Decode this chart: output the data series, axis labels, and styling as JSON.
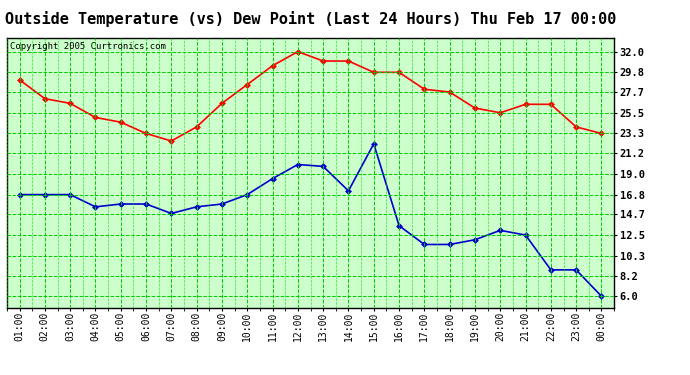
{
  "title": "Outside Temperature (vs) Dew Point (Last 24 Hours) Thu Feb 17 00:00",
  "copyright": "Copyright 2005 Curtronics.com",
  "x_labels": [
    "01:00",
    "02:00",
    "03:00",
    "04:00",
    "05:00",
    "06:00",
    "07:00",
    "08:00",
    "09:00",
    "10:00",
    "11:00",
    "12:00",
    "13:00",
    "14:00",
    "15:00",
    "16:00",
    "17:00",
    "18:00",
    "19:00",
    "20:00",
    "21:00",
    "22:00",
    "23:00",
    "00:00"
  ],
  "temp_values": [
    29.0,
    27.0,
    26.5,
    25.0,
    24.5,
    23.3,
    22.5,
    24.0,
    26.5,
    28.5,
    30.5,
    32.0,
    31.0,
    31.0,
    29.8,
    29.8,
    28.0,
    27.7,
    26.0,
    25.5,
    26.4,
    26.4,
    24.0,
    23.3
  ],
  "dew_values": [
    16.8,
    16.8,
    16.8,
    15.5,
    15.8,
    15.8,
    14.8,
    15.5,
    15.8,
    16.8,
    18.5,
    20.0,
    19.8,
    17.2,
    22.2,
    13.5,
    11.5,
    11.5,
    12.0,
    13.0,
    12.5,
    8.8,
    8.8,
    6.0
  ],
  "temp_color": "#FF0000",
  "dew_color": "#0000CC",
  "bg_color": "#CCFFCC",
  "grid_color": "#00CC00",
  "title_fontsize": 11,
  "yticks": [
    6.0,
    8.2,
    10.3,
    12.5,
    14.7,
    16.8,
    19.0,
    21.2,
    23.3,
    25.5,
    27.7,
    29.8,
    32.0
  ],
  "ylim_min": 4.8,
  "ylim_max": 33.5
}
